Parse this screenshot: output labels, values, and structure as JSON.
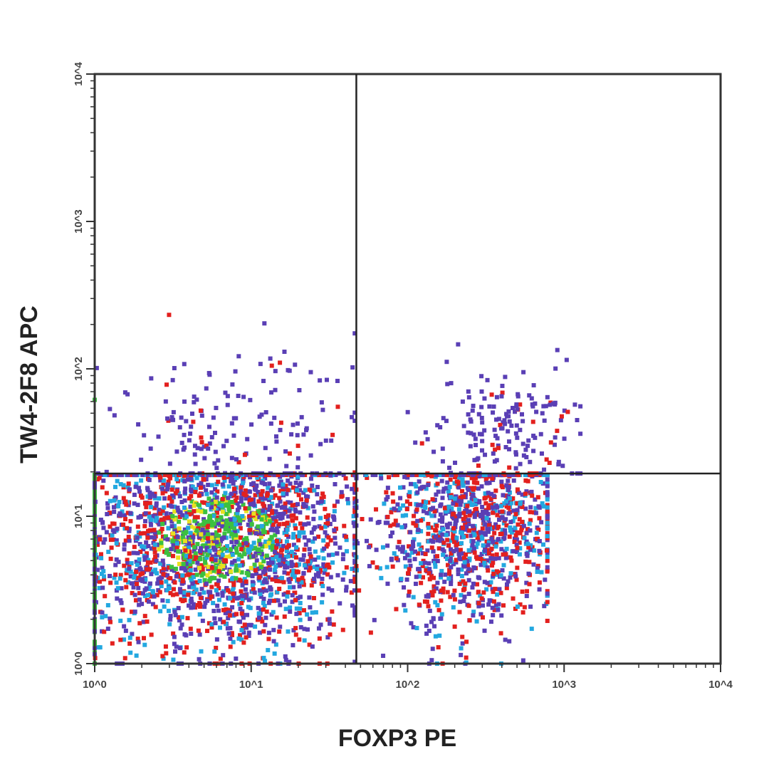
{
  "chart_data": {
    "type": "scatter",
    "subtype": "flow-cytometry-dot-plot",
    "xlabel": "FOXP3 PE",
    "ylabel": "TW4-2F8 APC",
    "xscale": "log",
    "yscale": "log",
    "xlim": [
      1,
      10000
    ],
    "ylim": [
      1,
      10000
    ],
    "x_ticks": [
      1,
      10,
      100,
      1000,
      10000
    ],
    "y_ticks": [
      1,
      10,
      100,
      1000,
      10000
    ],
    "x_tick_labels": [
      "10^0",
      "10^1",
      "10^2",
      "10^3",
      "10^4"
    ],
    "y_tick_labels": [
      "10^0",
      "10^1",
      "10^2",
      "10^3",
      "10^4"
    ],
    "quadrant_gate": {
      "x": 47,
      "y": 19.5
    },
    "density_colors": [
      "#5a3fb5",
      "#e3201e",
      "#23a8e0",
      "#3cc040",
      "#e8e020"
    ],
    "populations": [
      {
        "name_visible": false,
        "x_center": 6,
        "y_center": 7,
        "x_spread_decades": 0.45,
        "y_spread_decades": 0.35,
        "x_range": [
          1,
          47
        ],
        "y_range": [
          1,
          19.5
        ],
        "relative_density": "high"
      },
      {
        "name_visible": false,
        "x_center": 250,
        "y_center": 8,
        "x_spread_decades": 0.3,
        "y_spread_decades": 0.33,
        "x_range": [
          47,
          800
        ],
        "y_range": [
          1,
          19.5
        ],
        "relative_density": "medium"
      },
      {
        "name_visible": false,
        "x_center": 400,
        "y_center": 40,
        "x_spread_decades": 0.25,
        "y_spread_decades": 0.22,
        "x_range": [
          60,
          1300
        ],
        "y_range": [
          19.5,
          150
        ],
        "relative_density": "low"
      },
      {
        "name_visible": false,
        "x_center": 8,
        "y_center": 40,
        "x_spread_decades": 0.4,
        "y_spread_decades": 0.3,
        "x_range": [
          1,
          47
        ],
        "y_range": [
          19.5,
          300
        ],
        "relative_density": "low"
      }
    ]
  }
}
